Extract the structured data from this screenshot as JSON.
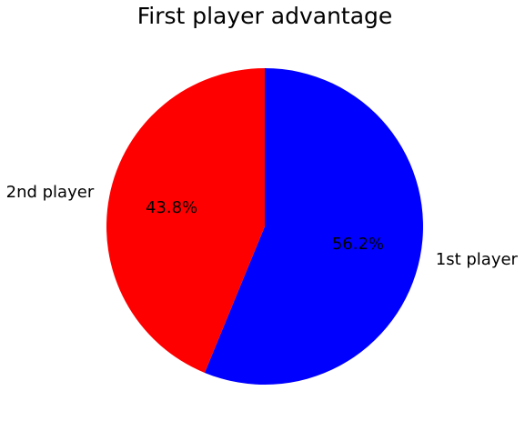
{
  "chart_data": {
    "type": "pie",
    "title": "First player advantage",
    "slices": [
      {
        "label": "1st player",
        "value": 56.2,
        "pct_label": "56.2%",
        "color": "#0000ff"
      },
      {
        "label": "2nd player",
        "value": 43.8,
        "pct_label": "43.8%",
        "color": "#ff0000"
      }
    ],
    "start_angle": 90,
    "direction": "clockwise",
    "legend": false
  }
}
